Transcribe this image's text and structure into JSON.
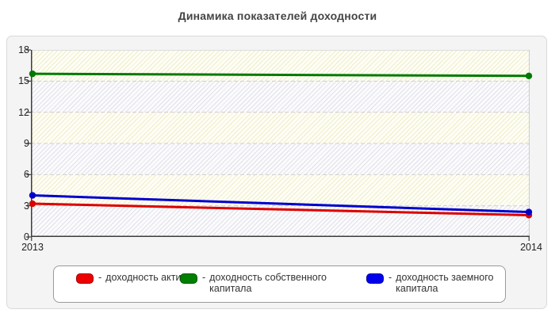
{
  "title": "Динамика показателей доходности",
  "chart_data": {
    "type": "line",
    "title": "Динамика показателей доходности",
    "x_labels": [
      "2013",
      "2014"
    ],
    "series": [
      {
        "name": "доходность активов",
        "color": "#dd0000",
        "values": [
          3.2,
          2.1
        ]
      },
      {
        "name": "доходность собственного капитала",
        "color": "#007a00",
        "values": [
          15.7,
          15.5
        ]
      },
      {
        "name": "доходность заемного капитала",
        "color": "#0000cc",
        "values": [
          4.0,
          2.4
        ]
      }
    ],
    "xlabel": "",
    "ylabel": "",
    "ylim": [
      0,
      18
    ],
    "yticks": [
      0,
      3,
      6,
      9,
      12,
      15,
      18
    ],
    "grid": "horizontal-dashed",
    "grid_color": "#cfcfcf",
    "axis_color": "#3c3c3c",
    "legend_position": "bottom",
    "plot_band_colors": [
      "gray-hatch",
      "yellow-hatch"
    ]
  },
  "legend": {
    "dash": "-",
    "items": [
      {
        "label": "доходность активов",
        "color": "#ee0000",
        "border": "#990000"
      },
      {
        "label": "доходность собственного капитала",
        "color": "#008000",
        "border": "#005500"
      },
      {
        "label": "доходность заемного капитала",
        "color": "#0000ee",
        "border": "#000099"
      }
    ]
  }
}
